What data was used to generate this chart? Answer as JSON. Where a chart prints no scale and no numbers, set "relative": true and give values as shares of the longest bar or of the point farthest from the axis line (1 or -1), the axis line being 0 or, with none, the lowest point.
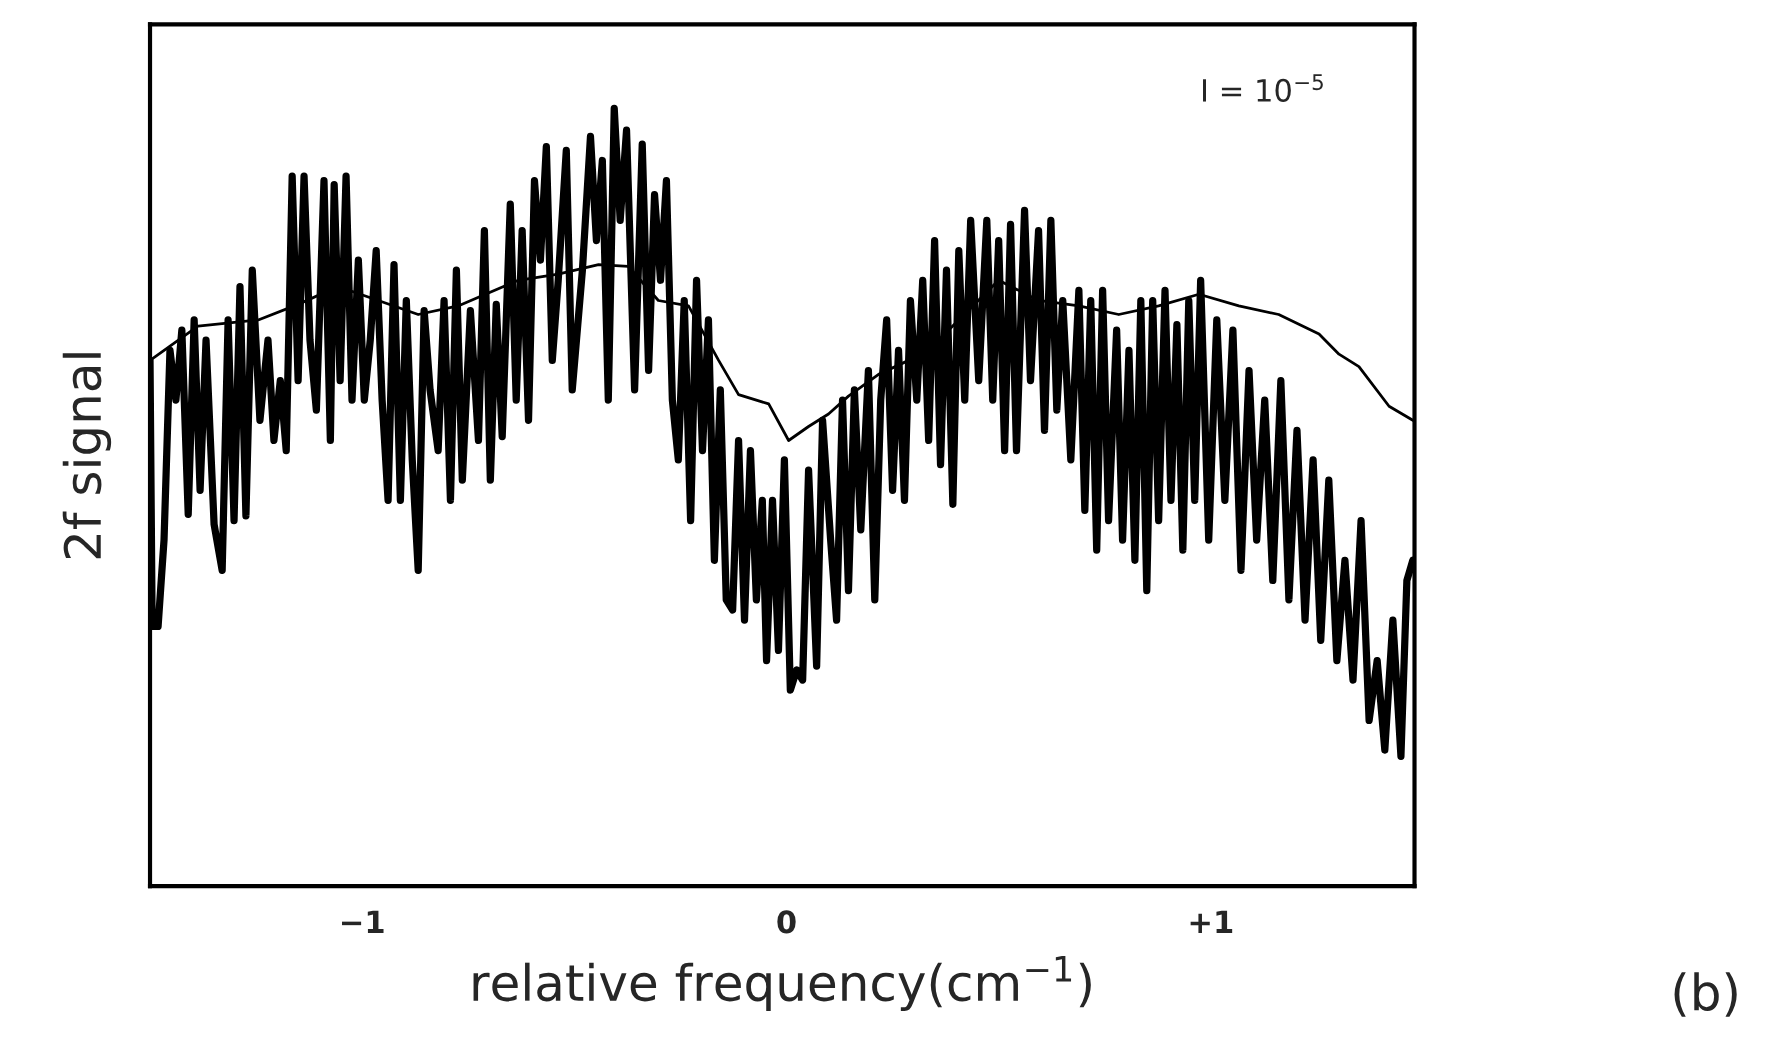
{
  "chart_data": {
    "type": "line",
    "relative": true,
    "xlabel": "relative frequency(cm$^{−1}$)",
    "ylabel": "2f signal",
    "annotations": [
      "I = 10$^{−5}$",
      "(b)"
    ],
    "xlim": [
      -1.5,
      1.48
    ],
    "xticks": [
      {
        "value": -1,
        "label": "−1"
      },
      0,
      {
        "value": 1,
        "label": "+1"
      }
    ],
    "tick_labels": "x",
    "grid": false,
    "legend": false,
    "series": [
      {
        "color": "#000000",
        "x": [
          -1.5,
          -1.495,
          -1.481,
          -1.467,
          -1.453,
          -1.439,
          -1.425,
          -1.41,
          -1.396,
          -1.382,
          -1.368,
          -1.349,
          -1.33,
          -1.316,
          -1.302,
          -1.288,
          -1.274,
          -1.259,
          -1.241,
          -1.222,
          -1.208,
          -1.193,
          -1.179,
          -1.165,
          -1.151,
          -1.137,
          -1.123,
          -1.108,
          -1.09,
          -1.075,
          -1.066,
          -1.052,
          -1.038,
          -1.024,
          -1.009,
          -0.995,
          -0.981,
          -0.967,
          -0.953,
          -0.939,
          -0.925,
          -0.91,
          -0.896,
          -0.882,
          -0.868,
          -0.854,
          -0.84,
          -0.821,
          -0.807,
          -0.792,
          -0.778,
          -0.764,
          -0.745,
          -0.726,
          -0.712,
          -0.698,
          -0.684,
          -0.67,
          -0.651,
          -0.637,
          -0.623,
          -0.608,
          -0.594,
          -0.58,
          -0.566,
          -0.552,
          -0.538,
          -0.519,
          -0.505,
          -0.481,
          -0.462,
          -0.448,
          -0.434,
          -0.42,
          -0.406,
          -0.392,
          -0.377,
          -0.358,
          -0.34,
          -0.325,
          -0.311,
          -0.297,
          -0.283,
          -0.269,
          -0.255,
          -0.241,
          -0.226,
          -0.212,
          -0.198,
          -0.184,
          -0.17,
          -0.156,
          -0.142,
          -0.127,
          -0.113,
          -0.099,
          -0.085,
          -0.071,
          -0.057,
          -0.047,
          -0.033,
          -0.019,
          -0.005,
          0.009,
          0.024,
          0.038,
          0.052,
          0.071,
          0.085,
          0.104,
          0.118,
          0.132,
          0.146,
          0.16,
          0.175,
          0.193,
          0.208,
          0.222,
          0.236,
          0.25,
          0.264,
          0.278,
          0.292,
          0.307,
          0.321,
          0.335,
          0.349,
          0.363,
          0.377,
          0.392,
          0.406,
          0.42,
          0.434,
          0.453,
          0.472,
          0.486,
          0.5,
          0.514,
          0.528,
          0.542,
          0.561,
          0.575,
          0.594,
          0.608,
          0.623,
          0.637,
          0.651,
          0.67,
          0.689,
          0.703,
          0.717,
          0.731,
          0.745,
          0.759,
          0.778,
          0.792,
          0.807,
          0.821,
          0.835,
          0.849,
          0.863,
          0.877,
          0.892,
          0.906,
          0.92,
          0.934,
          0.948,
          0.962,
          0.976,
          0.995,
          1.014,
          1.033,
          1.052,
          1.071,
          1.09,
          1.108,
          1.127,
          1.146,
          1.165,
          1.184,
          1.203,
          1.222,
          1.241,
          1.259,
          1.278,
          1.297,
          1.316,
          1.335,
          1.354,
          1.373,
          1.392,
          1.41,
          1.429,
          1.448,
          1.462,
          1.476
        ],
        "values": [
          0.676,
          0.334,
          0.334,
          0.445,
          0.689,
          0.625,
          0.715,
          0.478,
          0.728,
          0.509,
          0.702,
          0.465,
          0.406,
          0.728,
          0.47,
          0.771,
          0.476,
          0.792,
          0.599,
          0.702,
          0.573,
          0.65,
          0.56,
          0.913,
          0.65,
          0.913,
          0.702,
          0.612,
          0.907,
          0.573,
          0.902,
          0.65,
          0.913,
          0.625,
          0.805,
          0.625,
          0.702,
          0.817,
          0.625,
          0.496,
          0.799,
          0.496,
          0.753,
          0.548,
          0.406,
          0.74,
          0.638,
          0.56,
          0.753,
          0.496,
          0.792,
          0.522,
          0.74,
          0.573,
          0.843,
          0.522,
          0.748,
          0.578,
          0.877,
          0.625,
          0.843,
          0.599,
          0.907,
          0.805,
          0.951,
          0.676,
          0.779,
          0.946,
          0.638,
          0.792,
          0.964,
          0.83,
          0.933,
          0.625,
          1.0,
          0.856,
          0.972,
          0.638,
          0.954,
          0.663,
          0.889,
          0.779,
          0.907,
          0.625,
          0.548,
          0.753,
          0.47,
          0.779,
          0.56,
          0.728,
          0.419,
          0.638,
          0.368,
          0.355,
          0.573,
          0.342,
          0.56,
          0.368,
          0.496,
          0.29,
          0.496,
          0.303,
          0.548,
          0.252,
          0.278,
          0.265,
          0.535,
          0.283,
          0.599,
          0.445,
          0.342,
          0.625,
          0.38,
          0.638,
          0.458,
          0.663,
          0.368,
          0.625,
          0.728,
          0.509,
          0.689,
          0.496,
          0.753,
          0.625,
          0.779,
          0.573,
          0.83,
          0.542,
          0.792,
          0.491,
          0.817,
          0.625,
          0.856,
          0.65,
          0.856,
          0.625,
          0.83,
          0.56,
          0.851,
          0.56,
          0.869,
          0.65,
          0.843,
          0.586,
          0.856,
          0.612,
          0.753,
          0.548,
          0.766,
          0.483,
          0.753,
          0.432,
          0.766,
          0.47,
          0.715,
          0.445,
          0.689,
          0.419,
          0.753,
          0.38,
          0.753,
          0.47,
          0.766,
          0.496,
          0.722,
          0.432,
          0.753,
          0.496,
          0.779,
          0.445,
          0.728,
          0.496,
          0.715,
          0.406,
          0.663,
          0.445,
          0.625,
          0.393,
          0.65,
          0.368,
          0.586,
          0.342,
          0.548,
          0.316,
          0.522,
          0.29,
          0.419,
          0.265,
          0.47,
          0.213,
          0.29,
          0.175,
          0.342,
          0.167,
          0.393,
          0.419
        ]
      },
      {
        "color": "#000000",
        "x": [
          -1.5,
          -1.387,
          -1.245,
          -1.151,
          -1.057,
          -0.962,
          -0.868,
          -0.774,
          -0.632,
          -0.538,
          -0.443,
          -0.373,
          -0.302,
          -0.231,
          -0.16,
          -0.113,
          -0.042,
          0.005,
          0.052,
          0.099,
          0.146,
          0.217,
          0.288,
          0.358,
          0.406,
          0.5,
          0.594,
          0.689,
          0.783,
          0.877,
          0.972,
          1.066,
          1.16,
          1.255,
          1.302,
          1.349,
          1.42,
          1.476
        ],
        "values": [
          0.676,
          0.72,
          0.728,
          0.748,
          0.771,
          0.753,
          0.735,
          0.746,
          0.779,
          0.787,
          0.799,
          0.797,
          0.753,
          0.746,
          0.676,
          0.632,
          0.62,
          0.573,
          0.591,
          0.607,
          0.63,
          0.658,
          0.676,
          0.702,
          0.728,
          0.779,
          0.753,
          0.746,
          0.735,
          0.746,
          0.761,
          0.746,
          0.735,
          0.71,
          0.684,
          0.668,
          0.617,
          0.599
        ]
      }
    ]
  }
}
